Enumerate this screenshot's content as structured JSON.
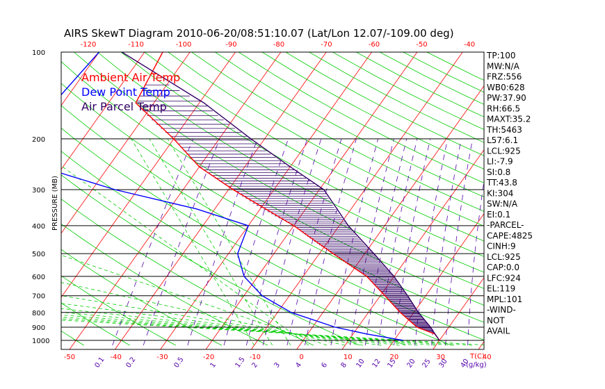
{
  "chart_data": {
    "type": "line",
    "title": "AIRS SkewT Diagram 2010-06-20/08:51:10.07 (Lat/Lon 12.07/-109.00 deg)",
    "ylabel": "PRESSURE (MB)",
    "xlabel_bottom": "T(C)",
    "mixing_ratio_unit": "(g/kg)",
    "pressure_ticks": [
      "100",
      "200",
      "300",
      "400",
      "500",
      "600",
      "700",
      "800",
      "900",
      "1000"
    ],
    "top_temp_ticks": [
      "-120",
      "-110",
      "-100",
      "-90",
      "-80",
      "-70",
      "-60",
      "-50",
      "-40"
    ],
    "bottom_temp_ticks": [
      "-50",
      "-40",
      "-30",
      "-20",
      "-10",
      "0",
      "10",
      "20",
      "30",
      "40"
    ],
    "mixing_ratio_ticks": [
      "0.1",
      "0.2",
      "0.5",
      "1",
      "1.5",
      "2",
      "3",
      "4",
      "6",
      "8",
      "10",
      "12",
      "15",
      "20",
      "25",
      "30",
      "40"
    ],
    "series": [
      {
        "name": "Ambient Air Temp",
        "color": "#ff0000",
        "points": [
          [
            100,
            -76
          ],
          [
            150,
            -74
          ],
          [
            200,
            -60
          ],
          [
            250,
            -50
          ],
          [
            300,
            -39
          ],
          [
            400,
            -20
          ],
          [
            500,
            -7
          ],
          [
            600,
            4
          ],
          [
            700,
            11
          ],
          [
            800,
            17
          ],
          [
            900,
            23
          ],
          [
            950,
            28
          ],
          [
            1000,
            30
          ]
        ]
      },
      {
        "name": "Dew Point Temp",
        "color": "#0000ff",
        "points": [
          [
            100,
            -90
          ],
          [
            150,
            -92
          ],
          [
            200,
            -90
          ],
          [
            250,
            -85
          ],
          [
            300,
            -65
          ],
          [
            350,
            -44
          ],
          [
            400,
            -30
          ],
          [
            500,
            -28
          ],
          [
            600,
            -23
          ],
          [
            700,
            -16
          ],
          [
            800,
            -7
          ],
          [
            900,
            5
          ],
          [
            950,
            13
          ],
          [
            1000,
            22
          ]
        ]
      },
      {
        "name": "Air Parcel Temp",
        "color": "#330066",
        "points": [
          [
            100,
            -85
          ],
          [
            150,
            -59
          ],
          [
            200,
            -43
          ],
          [
            250,
            -30
          ],
          [
            300,
            -19
          ],
          [
            400,
            -8
          ],
          [
            500,
            2
          ],
          [
            600,
            10
          ],
          [
            700,
            16
          ],
          [
            800,
            21
          ],
          [
            900,
            26
          ],
          [
            925,
            27
          ],
          [
            1000,
            30
          ]
        ]
      }
    ],
    "axes": {
      "pressure_log": true,
      "ylim": [
        1040,
        100
      ],
      "top_temp_range": [
        -127,
        -36
      ],
      "bottom_temp_range": [
        -52,
        44
      ]
    }
  },
  "indices": [
    "TP:100",
    "MW:N/A",
    "FRZ:556",
    "WB0:628",
    "PW:37.90",
    "RH:66.5",
    "MAXT:35.2",
    "TH:5463",
    "L57:6.1",
    "LCL:925",
    "LI:-7.9",
    "SI:0.8",
    "TT:43.8",
    "KI:304",
    "SW:N/A",
    "EI:0.1",
    "-PARCEL-",
    "CAPE:4825",
    "CINH:9",
    "LCL:925",
    "CAP:0.0",
    "LFC:924",
    "EL:119",
    "MPL:101",
    "-WIND-",
    "NOT",
    "AVAIL"
  ],
  "colors": {
    "isotherm": "#ff0000",
    "dry_adiabat": "#00cc00",
    "moist_adiabat": "#00cc00",
    "mixing_ratio": "#5500aa",
    "axis_top_ticks": "#ff0000",
    "axis_bottom_ticks": "#ff0000",
    "mixing_ratio_labels": "#5500aa"
  }
}
